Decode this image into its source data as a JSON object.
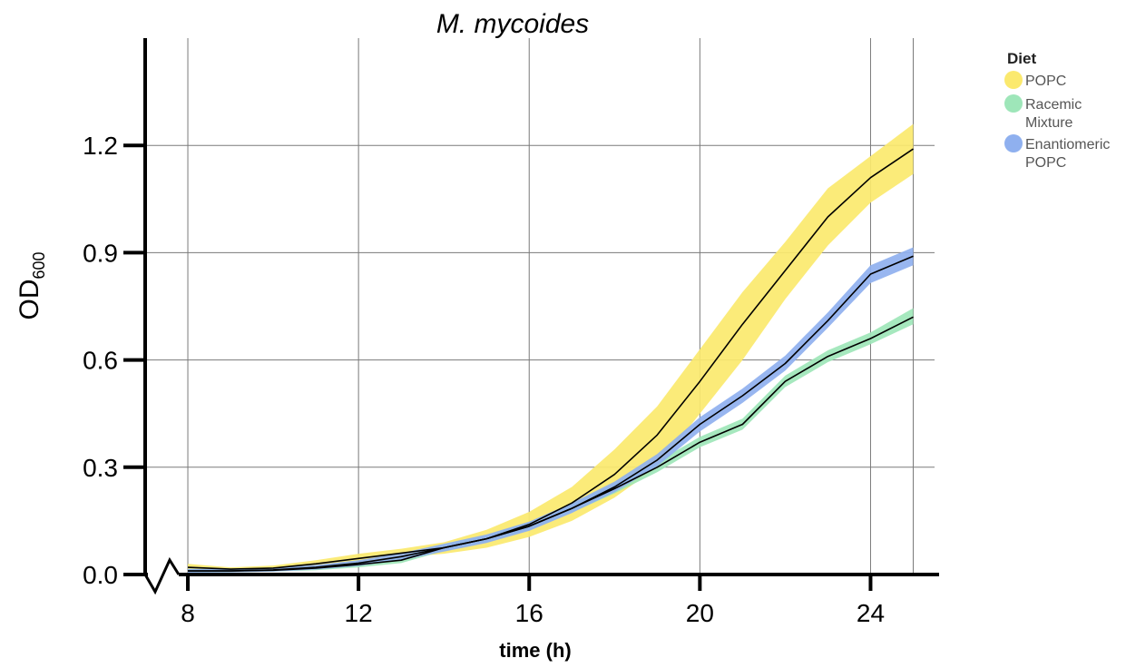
{
  "chart_data": {
    "type": "line",
    "title": "M. mycoides",
    "xlabel": "time (h)",
    "ylabel_main": "OD",
    "ylabel_sub": "600",
    "xlim": [
      7,
      25.5
    ],
    "ylim": [
      0,
      1.5
    ],
    "xticks": [
      8,
      12,
      16,
      20,
      24
    ],
    "yticks": [
      0.0,
      0.3,
      0.6,
      0.9,
      1.2
    ],
    "ytick_labels": [
      "0.0",
      "0.3",
      "0.6",
      "0.9",
      "1.2"
    ],
    "xtick_labels": [
      "8",
      "12",
      "16",
      "20",
      "24"
    ],
    "grid": true,
    "legend": {
      "title": "Diet",
      "position": "right",
      "entries": [
        {
          "lines": [
            "POPC"
          ],
          "color": "#fbe96e"
        },
        {
          "lines": [
            "Racemic",
            "Mixture"
          ],
          "color": "#9ee6b9"
        },
        {
          "lines": [
            "Enantiomeric",
            "POPC"
          ],
          "color": "#8fb0ef"
        }
      ]
    },
    "series": [
      {
        "name": "POPC",
        "color": "#fbe96e",
        "x": [
          8,
          9,
          10,
          11,
          12,
          13,
          14,
          15,
          16,
          17,
          18,
          19,
          20,
          21,
          22,
          23,
          24,
          25
        ],
        "y": [
          0.02,
          0.015,
          0.018,
          0.03,
          0.045,
          0.06,
          0.075,
          0.1,
          0.14,
          0.2,
          0.28,
          0.39,
          0.54,
          0.7,
          0.85,
          1.0,
          1.11,
          1.19
        ],
        "lower": [
          0.015,
          0.012,
          0.013,
          0.022,
          0.035,
          0.048,
          0.058,
          0.075,
          0.105,
          0.15,
          0.215,
          0.3,
          0.45,
          0.6,
          0.77,
          0.92,
          1.04,
          1.12
        ],
        "upper": [
          0.03,
          0.02,
          0.025,
          0.04,
          0.058,
          0.072,
          0.09,
          0.125,
          0.175,
          0.245,
          0.35,
          0.47,
          0.63,
          0.79,
          0.93,
          1.08,
          1.17,
          1.26
        ]
      },
      {
        "name": "Racemic Mixture",
        "color": "#9ee6b9",
        "x": [
          8,
          9,
          10,
          11,
          12,
          13,
          14,
          15,
          16,
          17,
          18,
          19,
          20,
          21,
          22,
          23,
          24,
          25
        ],
        "y": [
          0.01,
          0.01,
          0.012,
          0.018,
          0.028,
          0.04,
          0.075,
          0.1,
          0.135,
          0.185,
          0.24,
          0.3,
          0.37,
          0.42,
          0.54,
          0.61,
          0.66,
          0.72
        ],
        "lower": [
          0.005,
          0.006,
          0.008,
          0.012,
          0.02,
          0.032,
          0.066,
          0.09,
          0.124,
          0.173,
          0.227,
          0.286,
          0.356,
          0.405,
          0.524,
          0.594,
          0.644,
          0.7
        ],
        "upper": [
          0.016,
          0.015,
          0.017,
          0.025,
          0.036,
          0.05,
          0.085,
          0.11,
          0.147,
          0.198,
          0.254,
          0.315,
          0.385,
          0.436,
          0.556,
          0.627,
          0.677,
          0.745
        ]
      },
      {
        "name": "Enantiomeric POPC",
        "color": "#8fb0ef",
        "x": [
          8,
          9,
          10,
          11,
          12,
          13,
          14,
          15,
          16,
          17,
          18,
          19,
          20,
          21,
          22,
          23,
          24,
          25
        ],
        "y": [
          0.01,
          0.01,
          0.013,
          0.02,
          0.032,
          0.05,
          0.075,
          0.1,
          0.135,
          0.185,
          0.245,
          0.32,
          0.42,
          0.5,
          0.59,
          0.71,
          0.84,
          0.89
        ],
        "lower": [
          0.005,
          0.006,
          0.008,
          0.014,
          0.024,
          0.04,
          0.064,
          0.088,
          0.122,
          0.172,
          0.23,
          0.303,
          0.4,
          0.48,
          0.57,
          0.69,
          0.815,
          0.865
        ],
        "upper": [
          0.016,
          0.015,
          0.018,
          0.027,
          0.04,
          0.06,
          0.086,
          0.112,
          0.148,
          0.2,
          0.26,
          0.337,
          0.44,
          0.52,
          0.612,
          0.733,
          0.865,
          0.915
        ]
      }
    ]
  }
}
